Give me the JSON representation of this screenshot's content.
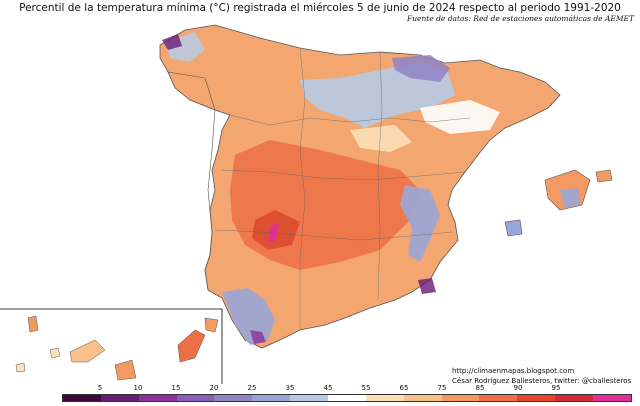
{
  "title": "Percentil de la temperatura mínima (°C) registrada el miércoles 5 de junio de 2024 respecto al periodo 1991-2020",
  "source": "Fuente de datos: Red de estaciones automáticas de AEMET",
  "credits": {
    "url": "http://climaenmapas.blogspot.com",
    "author": "César Rodríguez Ballesteros, twitter: @cballesteros"
  },
  "legend": {
    "tick_labels": [
      "5",
      "10",
      "15",
      "20",
      "25",
      "35",
      "45",
      "55",
      "65",
      "75",
      "85",
      "90",
      "95"
    ],
    "colors": [
      "#3b0a3a",
      "#6a1b78",
      "#8e2f9a",
      "#8a5fb8",
      "#8f83c6",
      "#9aa6d6",
      "#b6cbe6",
      "#ffffff",
      "#fde0b8",
      "#f9c08c",
      "#f39a62",
      "#ec6f45",
      "#e4472d",
      "#d42a3a",
      "#e0309c"
    ]
  },
  "regions": [
    "Peninsula",
    "Islas Baleares",
    "Islas Canarias"
  ]
}
